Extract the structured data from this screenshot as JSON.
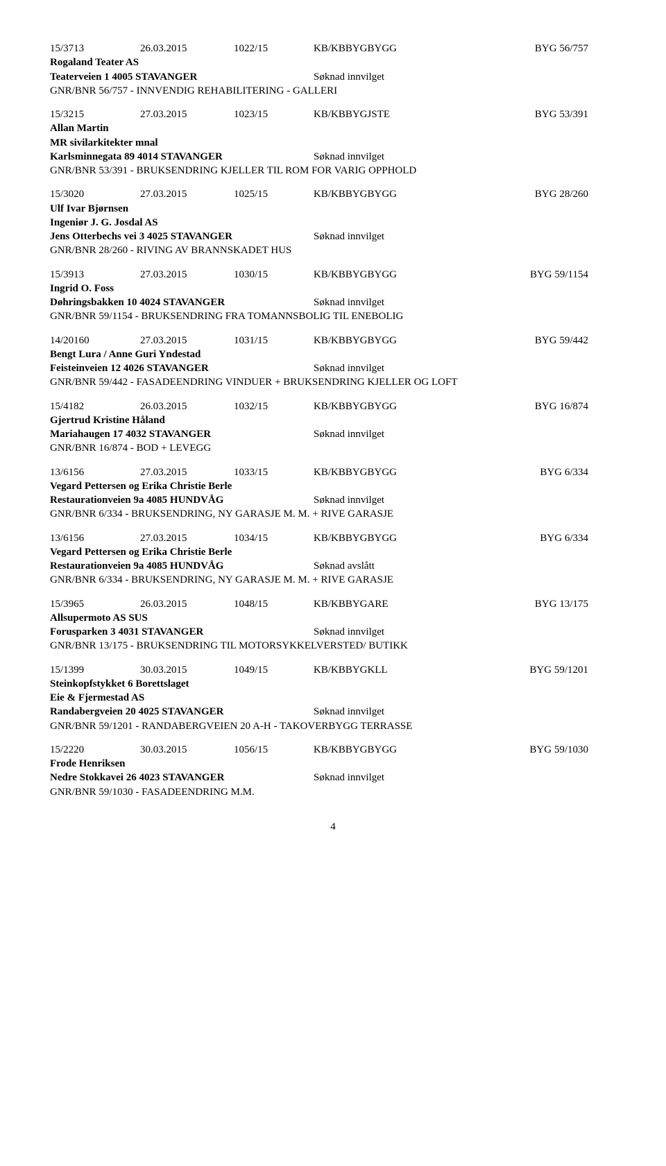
{
  "entries": [
    {
      "case_no": "15/3713",
      "date": "26.03.2015",
      "doc_no": "1022/15",
      "handler": "KB/KBBYGBYGG",
      "ref": "BYG 56/757",
      "owners": [
        "Rogaland Teater AS"
      ],
      "address": "Teaterveien 1 4005 STAVANGER",
      "status": "Søknad innvilget",
      "desc": "GNR/BNR 56/757 - INNVENDIG REHABILITERING - GALLERI"
    },
    {
      "case_no": "15/3215",
      "date": "27.03.2015",
      "doc_no": "1023/15",
      "handler": "KB/KBBYGJSTE",
      "ref": "BYG 53/391",
      "owners": [
        "Allan Martin",
        "MR sivilarkitekter mnal"
      ],
      "address": "Karlsminnegata 89 4014 STAVANGER",
      "status": "Søknad innvilget",
      "desc": "GNR/BNR 53/391 - BRUKSENDRING KJELLER TIL ROM FOR VARIG OPPHOLD"
    },
    {
      "case_no": "15/3020",
      "date": "27.03.2015",
      "doc_no": "1025/15",
      "handler": "KB/KBBYGBYGG",
      "ref": "BYG 28/260",
      "owners": [
        "Ulf Ivar Bjørnsen",
        "Ingeniør J. G. Josdal AS"
      ],
      "address": "Jens Otterbechs vei 3 4025 STAVANGER",
      "status": "Søknad innvilget",
      "desc": "GNR/BNR 28/260 - RIVING AV BRANNSKADET HUS"
    },
    {
      "case_no": "15/3913",
      "date": "27.03.2015",
      "doc_no": "1030/15",
      "handler": "KB/KBBYGBYGG",
      "ref": "BYG 59/1154",
      "owners": [
        "Ingrid O. Foss"
      ],
      "address": "Døhringsbakken 10 4024 STAVANGER",
      "status": "Søknad innvilget",
      "desc": "GNR/BNR 59/1154 - BRUKSENDRING FRA TOMANNSBOLIG TIL ENEBOLIG"
    },
    {
      "case_no": "14/20160",
      "date": "27.03.2015",
      "doc_no": "1031/15",
      "handler": "KB/KBBYGBYGG",
      "ref": "BYG 59/442",
      "owners": [
        "Bengt Lura / Anne Guri Yndestad"
      ],
      "address": "Feisteinveien 12 4026 STAVANGER",
      "status": "Søknad innvilget",
      "desc": "GNR/BNR 59/442 - FASADEENDRING VINDUER + BRUKSENDRING KJELLER OG LOFT"
    },
    {
      "case_no": "15/4182",
      "date": "26.03.2015",
      "doc_no": "1032/15",
      "handler": "KB/KBBYGBYGG",
      "ref": "BYG 16/874",
      "owners": [
        "Gjertrud Kristine Håland"
      ],
      "address": "Mariahaugen 17 4032 STAVANGER",
      "status": "Søknad innvilget",
      "desc": "GNR/BNR 16/874 - BOD + LEVEGG"
    },
    {
      "case_no": "13/6156",
      "date": "27.03.2015",
      "doc_no": "1033/15",
      "handler": "KB/KBBYGBYGG",
      "ref": "BYG 6/334",
      "owners": [
        "Vegard Pettersen og Erika Christie Berle"
      ],
      "address": "Restaurationveien 9a 4085 HUNDVÅG",
      "status": "Søknad innvilget",
      "desc": "GNR/BNR 6/334 - BRUKSENDRING, NY GARASJE M. M. + RIVE GARASJE"
    },
    {
      "case_no": "13/6156",
      "date": "27.03.2015",
      "doc_no": "1034/15",
      "handler": "KB/KBBYGBYGG",
      "ref": "BYG 6/334",
      "owners": [
        "Vegard Pettersen og Erika Christie Berle"
      ],
      "address": "Restaurationveien 9a 4085 HUNDVÅG",
      "status": "Søknad avslått",
      "desc": "GNR/BNR 6/334 - BRUKSENDRING, NY GARASJE M. M. + RIVE GARASJE"
    },
    {
      "case_no": "15/3965",
      "date": "26.03.2015",
      "doc_no": "1048/15",
      "handler": "KB/KBBYGARE",
      "ref": "BYG 13/175",
      "owners": [
        "Allsupermoto AS SUS"
      ],
      "address": "Forusparken 3 4031 STAVANGER",
      "status": "Søknad innvilget",
      "desc": "GNR/BNR 13/175 - BRUKSENDRING TIL MOTORSYKKELVERSTED/ BUTIKK"
    },
    {
      "case_no": "15/1399",
      "date": "30.03.2015",
      "doc_no": "1049/15",
      "handler": "KB/KBBYGKLL",
      "ref": "BYG 59/1201",
      "owners": [
        "Steinkopfstykket 6 Borettslaget",
        "Eie & Fjermestad AS"
      ],
      "address": "Randabergveien 20 4025 STAVANGER",
      "status": "Søknad innvilget",
      "desc": "GNR/BNR 59/1201 - RANDABERGVEIEN 20 A-H - TAKOVERBYGG TERRASSE"
    },
    {
      "case_no": "15/2220",
      "date": "30.03.2015",
      "doc_no": "1056/15",
      "handler": "KB/KBBYGBYGG",
      "ref": "BYG 59/1030",
      "owners": [
        "Frode Henriksen"
      ],
      "address": "Nedre Stokkavei 26 4023 STAVANGER",
      "status": "Søknad innvilget",
      "desc": "GNR/BNR 59/1030 - FASADEENDRING M.M."
    }
  ],
  "page_number": "4"
}
